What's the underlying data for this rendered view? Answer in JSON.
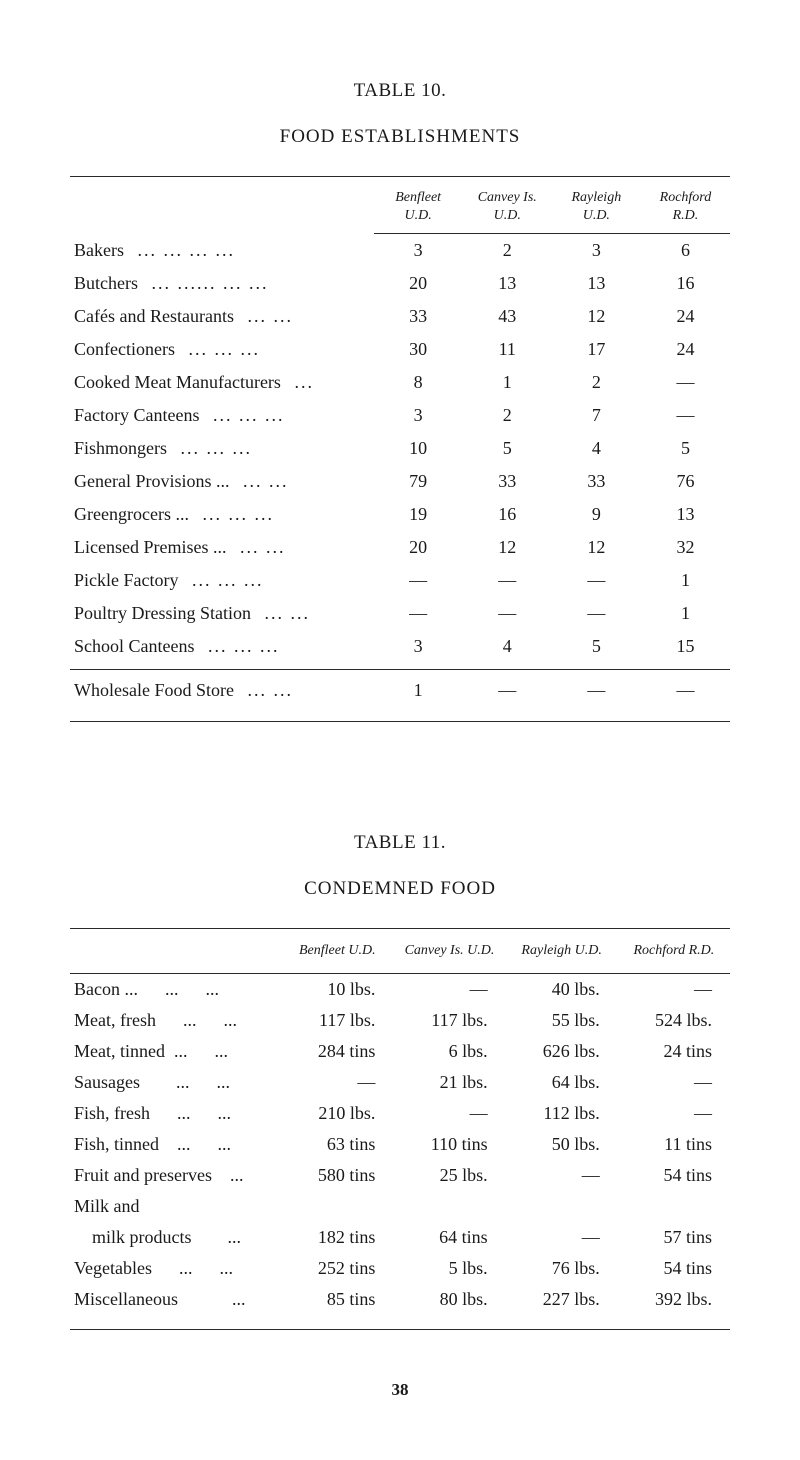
{
  "page_number": "38",
  "table10": {
    "title": "TABLE 10.",
    "subtitle": "FOOD ESTABLISHMENTS",
    "headers": {
      "c1": "Benfleet\nU.D.",
      "c2": "Canvey Is.\nU.D.",
      "c3": "Rayleigh\nU.D.",
      "c4": "Rochford\nR.D."
    },
    "rows": [
      {
        "label": "Bakers",
        "dots": "...    ...    ...    ...",
        "c1": "3",
        "c2": "2",
        "c3": "3",
        "c4": "6"
      },
      {
        "label": "Butchers",
        "dots": "...    ......  ...    ...",
        "c1": "20",
        "c2": "13",
        "c3": "13",
        "c4": "16"
      },
      {
        "label": "Cafés and Restaurants",
        "dots": "...    ...",
        "c1": "33",
        "c2": "43",
        "c3": "12",
        "c4": "24"
      },
      {
        "label": "Confectioners",
        "dots": "...    ...    ...",
        "c1": "30",
        "c2": "11",
        "c3": "17",
        "c4": "24"
      },
      {
        "label": "Cooked Meat Manufacturers",
        "dots": "...",
        "c1": "8",
        "c2": "1",
        "c3": "2",
        "c4": "—"
      },
      {
        "label": "Factory Canteens",
        "dots": "...    ...    ...",
        "c1": "3",
        "c2": "2",
        "c3": "7",
        "c4": "—"
      },
      {
        "label": "Fishmongers",
        "dots": "...    ...    ...",
        "c1": "10",
        "c2": "5",
        "c3": "4",
        "c4": "5"
      },
      {
        "label": "General Provisions ...",
        "dots": "...    ...",
        "c1": "79",
        "c2": "33",
        "c3": "33",
        "c4": "76"
      },
      {
        "label": "Greengrocers ...",
        "dots": "...    ...    ...",
        "c1": "19",
        "c2": "16",
        "c3": "9",
        "c4": "13"
      },
      {
        "label": "Licensed Premises  ...",
        "dots": "...    ...",
        "c1": "20",
        "c2": "12",
        "c3": "12",
        "c4": "32"
      },
      {
        "label": "Pickle Factory",
        "dots": "...    ...    ...",
        "c1": "—",
        "c2": "—",
        "c3": "—",
        "c4": "1"
      },
      {
        "label": "Poultry Dressing Station",
        "dots": "...    ...",
        "c1": "—",
        "c2": "—",
        "c3": "—",
        "c4": "1"
      },
      {
        "label": "School Canteens",
        "dots": "...    ...    ...",
        "c1": "3",
        "c2": "4",
        "c3": "5",
        "c4": "15"
      }
    ],
    "final_row": {
      "label": "Wholesale Food Store",
      "dots": "...    ...",
      "c1": "1",
      "c2": "—",
      "c3": "—",
      "c4": "—"
    }
  },
  "table11": {
    "title": "TABLE 11.",
    "subtitle": "CONDEMNED FOOD",
    "headers": {
      "c1": "Benfleet U.D.",
      "c2": "Canvey Is. U.D.",
      "c3": "Rayleigh U.D.",
      "c4": "Rochford R.D."
    },
    "rows": [
      {
        "label": "Bacon ...      ...      ...",
        "c1": "10 lbs.",
        "c2": "—",
        "c3": "40 lbs.",
        "c4": "—"
      },
      {
        "label": "Meat, fresh      ...      ...",
        "c1": "117 lbs.",
        "c2": "117 lbs.",
        "c3": "55 lbs.",
        "c4": "524 lbs."
      },
      {
        "label": "Meat, tinned  ...      ...",
        "c1": "284 tins",
        "c2": "6 lbs.",
        "c3": "626 lbs.",
        "c4": "24 tins"
      },
      {
        "label": "Sausages        ...      ...",
        "c1": "—",
        "c2": "21 lbs.",
        "c3": "64 lbs.",
        "c4": "—"
      },
      {
        "label": "Fish, fresh      ...      ...",
        "c1": "210 lbs.",
        "c2": "—",
        "c3": "112 lbs.",
        "c4": "—"
      },
      {
        "label": "Fish, tinned    ...      ...",
        "c1": "63 tins",
        "c2": "110 tins",
        "c3": "50 lbs.",
        "c4": "11 tins"
      },
      {
        "label": "Fruit and preserves    ...",
        "c1": "580 tins",
        "c2": "25 lbs.",
        "c3": "—",
        "c4": "54 tins"
      },
      {
        "label": "Milk and",
        "c1": "",
        "c2": "",
        "c3": "",
        "c4": ""
      },
      {
        "label": "    milk products        ...",
        "c1": "182 tins",
        "c2": "64 tins",
        "c3": "—",
        "c4": "57 tins"
      },
      {
        "label": "Vegetables      ...      ...",
        "c1": "252 tins",
        "c2": "5 lbs.",
        "c3": "76 lbs.",
        "c4": "54 tins"
      },
      {
        "label": "Miscellaneous            ...",
        "c1": "85 tins",
        "c2": "80 lbs.",
        "c3": "227 lbs.",
        "c4": "392 lbs."
      }
    ]
  },
  "colors": {
    "text": "#1a1a1a",
    "rule": "#2a2a2a",
    "background": "#ffffff"
  }
}
